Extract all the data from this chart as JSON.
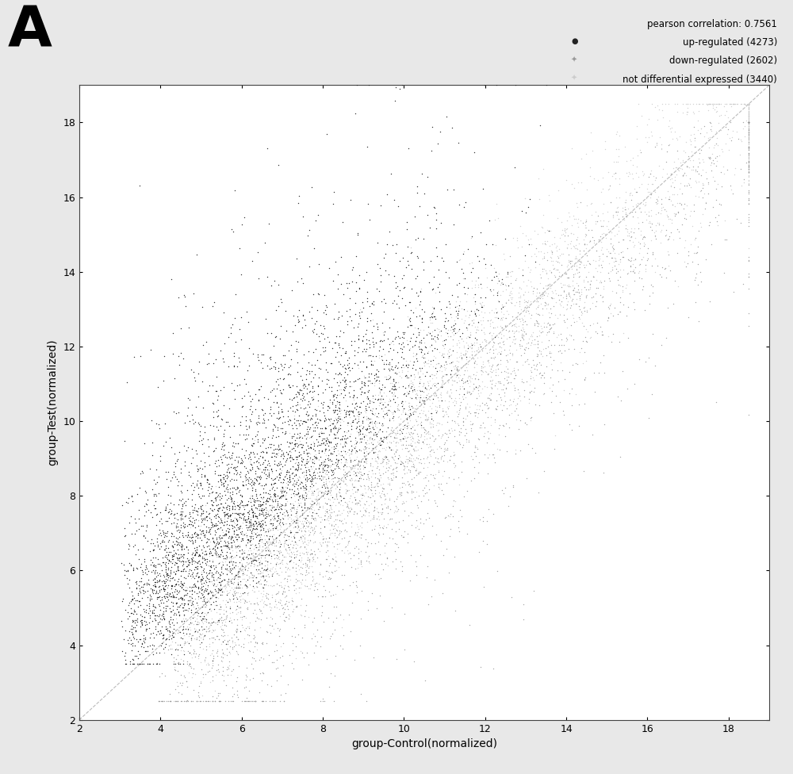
{
  "title_label": "A",
  "pearson_corr": "pearson correlation: 0.7561",
  "up_label": "up-regulated (4273)",
  "down_label": "down-regulated (2602)",
  "not_label": "not differential expressed (3440)",
  "n_up": 4273,
  "n_down": 2602,
  "n_not": 3440,
  "xlabel": "group-Control(normalized)",
  "ylabel": "group-Test(normalized)",
  "xlim": [
    2,
    19
  ],
  "ylim": [
    2,
    19
  ],
  "xticks": [
    2,
    4,
    6,
    8,
    10,
    12,
    14,
    16,
    18
  ],
  "yticks": [
    2,
    4,
    6,
    8,
    10,
    12,
    14,
    16,
    18
  ],
  "up_color": "#222222",
  "down_color": "#999999",
  "not_color": "#cccccc",
  "bg_color": "#ffffff",
  "fig_bg_color": "#e8e8e8",
  "marker_size": 4,
  "seed": 42
}
